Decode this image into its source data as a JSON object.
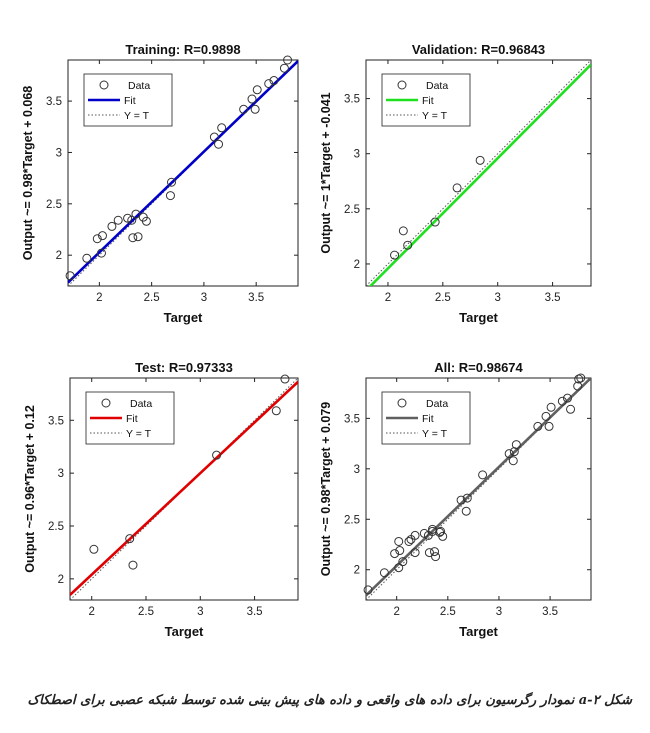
{
  "figure_caption": "شکل ۲-a نمودار رگرسیون برای داده های واقعی و داده های پیش بینی شده توسط شبکه عصبی برای اصطکاک",
  "colors": {
    "training": "#0000c8",
    "validation": "#1fe01f",
    "test": "#e00000",
    "all": "#606060",
    "identity": "#555555",
    "marker": "#333333"
  },
  "chart_data": [
    {
      "type": "scatter",
      "title": "Training: R=0.9898",
      "xlabel": "Target",
      "ylabel": "Output ~= 0.98*Target + 0.068",
      "xlim": [
        1.7,
        3.9
      ],
      "ylim": [
        1.7,
        3.9
      ],
      "xticks": [
        "2",
        "2.5",
        "3",
        "3.5"
      ],
      "yticks": [
        "2",
        "2.5",
        "3",
        "3.5"
      ],
      "legend": [
        "Data",
        "Fit",
        "Y = T"
      ],
      "legend_position": "top-left",
      "fit": {
        "slope": 0.98,
        "intercept": 0.068,
        "color": "#0000c8"
      },
      "points": [
        [
          1.72,
          1.8
        ],
        [
          1.88,
          1.97
        ],
        [
          1.98,
          2.16
        ],
        [
          2.02,
          2.02
        ],
        [
          2.03,
          2.19
        ],
        [
          2.12,
          2.28
        ],
        [
          2.18,
          2.34
        ],
        [
          2.27,
          2.36
        ],
        [
          2.31,
          2.34
        ],
        [
          2.32,
          2.17
        ],
        [
          2.35,
          2.4
        ],
        [
          2.37,
          2.18
        ],
        [
          2.42,
          2.37
        ],
        [
          2.45,
          2.33
        ],
        [
          2.68,
          2.58
        ],
        [
          2.69,
          2.71
        ],
        [
          3.1,
          3.15
        ],
        [
          3.14,
          3.08
        ],
        [
          3.17,
          3.24
        ],
        [
          3.38,
          3.42
        ],
        [
          3.46,
          3.52
        ],
        [
          3.49,
          3.42
        ],
        [
          3.51,
          3.61
        ],
        [
          3.62,
          3.67
        ],
        [
          3.67,
          3.7
        ],
        [
          3.77,
          3.82
        ],
        [
          3.8,
          3.9
        ]
      ]
    },
    {
      "type": "scatter",
      "title": "Validation: R=0.96843",
      "xlabel": "Target",
      "ylabel": "Output ~= 1*Target + -0.041",
      "xlim": [
        1.8,
        3.85
      ],
      "ylim": [
        1.8,
        3.85
      ],
      "xticks": [
        "2",
        "2.5",
        "3",
        "3.5"
      ],
      "yticks": [
        "2",
        "2.5",
        "3",
        "3.5"
      ],
      "legend": [
        "Data",
        "Fit",
        "Y = T"
      ],
      "legend_position": "top-left",
      "fit": {
        "slope": 1.0,
        "intercept": -0.041,
        "color": "#1fe01f"
      },
      "points": [
        [
          2.06,
          2.08
        ],
        [
          2.14,
          2.3
        ],
        [
          2.18,
          2.17
        ],
        [
          2.43,
          2.38
        ],
        [
          2.63,
          2.69
        ],
        [
          2.84,
          2.94
        ]
      ]
    },
    {
      "type": "scatter",
      "title": "Test: R=0.97333",
      "xlabel": "Target",
      "ylabel": "Output ~= 0.96*Target + 0.12",
      "xlim": [
        1.8,
        3.9
      ],
      "ylim": [
        1.8,
        3.9
      ],
      "xticks": [
        "2",
        "2.5",
        "3",
        "3.5"
      ],
      "yticks": [
        "2",
        "2.5",
        "3",
        "3.5"
      ],
      "legend": [
        "Data",
        "Fit",
        "Y = T"
      ],
      "legend_position": "top-left",
      "fit": {
        "slope": 0.96,
        "intercept": 0.12,
        "color": "#e00000"
      },
      "points": [
        [
          2.02,
          2.28
        ],
        [
          2.35,
          2.38
        ],
        [
          2.38,
          2.13
        ],
        [
          3.15,
          3.17
        ],
        [
          3.7,
          3.59
        ],
        [
          3.78,
          3.89
        ]
      ]
    },
    {
      "type": "scatter",
      "title": "All: R=0.98674",
      "xlabel": "Target",
      "ylabel": "Output ~= 0.98*Target + 0.079",
      "xlim": [
        1.7,
        3.9
      ],
      "ylim": [
        1.7,
        3.9
      ],
      "xticks": [
        "2",
        "2.5",
        "3",
        "3.5"
      ],
      "yticks": [
        "2",
        "2.5",
        "3",
        "3.5"
      ],
      "legend": [
        "Data",
        "Fit",
        "Y = T"
      ],
      "legend_position": "top-left",
      "fit": {
        "slope": 0.98,
        "intercept": 0.079,
        "color": "#606060"
      },
      "points": [
        [
          1.72,
          1.8
        ],
        [
          1.88,
          1.97
        ],
        [
          1.98,
          2.16
        ],
        [
          2.02,
          2.02
        ],
        [
          2.02,
          2.28
        ],
        [
          2.03,
          2.19
        ],
        [
          2.06,
          2.08
        ],
        [
          2.12,
          2.28
        ],
        [
          2.14,
          2.3
        ],
        [
          2.18,
          2.34
        ],
        [
          2.18,
          2.17
        ],
        [
          2.27,
          2.36
        ],
        [
          2.31,
          2.34
        ],
        [
          2.32,
          2.17
        ],
        [
          2.35,
          2.4
        ],
        [
          2.35,
          2.38
        ],
        [
          2.37,
          2.18
        ],
        [
          2.38,
          2.13
        ],
        [
          2.42,
          2.37
        ],
        [
          2.43,
          2.38
        ],
        [
          2.45,
          2.33
        ],
        [
          2.63,
          2.69
        ],
        [
          2.68,
          2.58
        ],
        [
          2.69,
          2.71
        ],
        [
          2.84,
          2.94
        ],
        [
          3.1,
          3.15
        ],
        [
          3.14,
          3.08
        ],
        [
          3.15,
          3.17
        ],
        [
          3.17,
          3.24
        ],
        [
          3.38,
          3.42
        ],
        [
          3.46,
          3.52
        ],
        [
          3.49,
          3.42
        ],
        [
          3.51,
          3.61
        ],
        [
          3.62,
          3.67
        ],
        [
          3.67,
          3.7
        ],
        [
          3.7,
          3.59
        ],
        [
          3.77,
          3.82
        ],
        [
          3.78,
          3.89
        ],
        [
          3.8,
          3.9
        ]
      ]
    }
  ]
}
